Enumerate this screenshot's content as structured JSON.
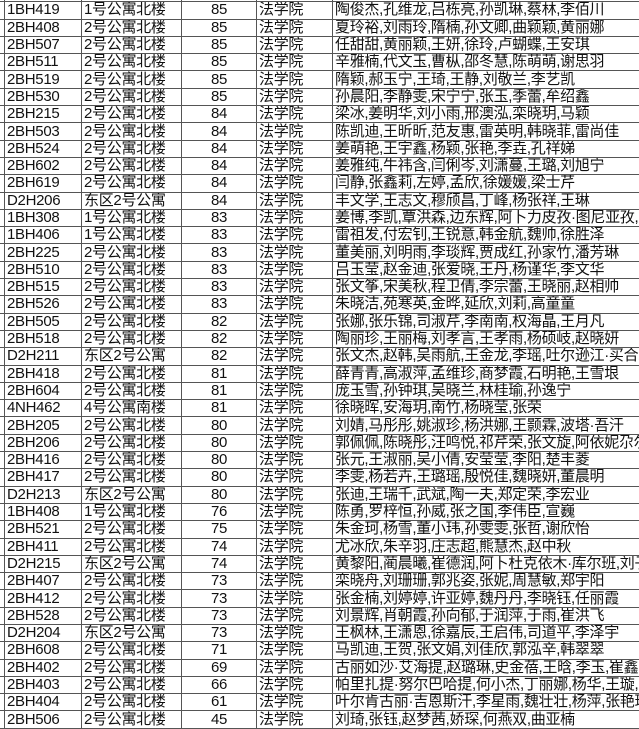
{
  "rows": [
    {
      "room": "1BH419",
      "building": "1号公寓北楼",
      "score": "85",
      "college": "法学院",
      "members": "陶俊杰,孔维龙,吕栋亮,孙凯琳,蔡林,李佰川"
    },
    {
      "room": "2BH408",
      "building": "2号公寓北楼",
      "score": "85",
      "college": "法学院",
      "members": "夏玲裕,刘雨玲,隋楠,孙文卿,曲颖颖,黄丽娜"
    },
    {
      "room": "2BH507",
      "building": "2号公寓北楼",
      "score": "85",
      "college": "法学院",
      "members": "任甜甜,黄丽颖,王妍,徐玲,卢蝴蝶,王安琪"
    },
    {
      "room": "2BH511",
      "building": "2号公寓北楼",
      "score": "85",
      "college": "法学院",
      "members": "辛雅楠,代文玉,曹枞,邵冬慧,陈萌萌,谢思羽"
    },
    {
      "room": "2BH519",
      "building": "2号公寓北楼",
      "score": "85",
      "college": "法学院",
      "members": "隋颖,郝玉宁,王琦,王静,刘敬兰,李艺凯"
    },
    {
      "room": "2BH530",
      "building": "2号公寓北楼",
      "score": "85",
      "college": "法学院",
      "members": "孙晨阳,李静雯,宋宁宁,张玉,季蕾,牟绍鑫"
    },
    {
      "room": "2BH215",
      "building": "2号公寓北楼",
      "score": "84",
      "college": "法学院",
      "members": "梁冰,姜明华,刘小雨,邢澳泓,栾晓玥,马颖"
    },
    {
      "room": "2BH503",
      "building": "2号公寓北楼",
      "score": "84",
      "college": "法学院",
      "members": "陈凯迪,王昕昕,范友惠,雷英明,韩晓菲,雷尚佳"
    },
    {
      "room": "2BH524",
      "building": "2号公寓北楼",
      "score": "84",
      "college": "法学院",
      "members": "姜萌艳,王宇鑫,杨颖,张艳,李垚,孔祥娣"
    },
    {
      "room": "2BH602",
      "building": "2号公寓北楼",
      "score": "84",
      "college": "法学院",
      "members": "姜雅纯,牛祎含,闫俐岑,刘潇蔓,王璐,刘旭宁"
    },
    {
      "room": "2BH619",
      "building": "2号公寓北楼",
      "score": "84",
      "college": "法学院",
      "members": "闫静,张鑫莉,左婷,孟欣,徐媛媛,梁士芹"
    },
    {
      "room": "D2H206",
      "building": "东区2号公寓",
      "score": "84",
      "college": "法学院",
      "members": "丰文学,王志文,穆颀昌,丁峰,杨张祥,王琳"
    },
    {
      "room": "1BH308",
      "building": "1号公寓北楼",
      "score": "83",
      "college": "法学院",
      "members": "姜博,李凯,覃洪森,边东辉,阿卜力皮孜·图尼亚孜,周"
    },
    {
      "room": "1BH406",
      "building": "1号公寓北楼",
      "score": "83",
      "college": "法学院",
      "members": "雷祖发,付宏钊,王锐意,韩金航,魏帅,徐胜泽"
    },
    {
      "room": "2BH225",
      "building": "2号公寓北楼",
      "score": "83",
      "college": "法学院",
      "members": "董美丽,刘明雨,李琰辉,贾成红,孙家竹,潘芳琳"
    },
    {
      "room": "2BH510",
      "building": "2号公寓北楼",
      "score": "83",
      "college": "法学院",
      "members": "吕玉莹,赵金迪,张爱晓,王丹,杨谨华,李文华"
    },
    {
      "room": "2BH515",
      "building": "2号公寓北楼",
      "score": "83",
      "college": "法学院",
      "members": "张文筝,宋美秋,程卫倩,李宗蕾,王晓丽,赵相帅"
    },
    {
      "room": "2BH526",
      "building": "2号公寓北楼",
      "score": "83",
      "college": "法学院",
      "members": "朱晓洁,苑寒英,金晔,延欣,刘莉,高童童"
    },
    {
      "room": "2BH505",
      "building": "2号公寓北楼",
      "score": "82",
      "college": "法学院",
      "members": "张娜,张乐锦,司淑芹,李南南,权海晶,王月凡"
    },
    {
      "room": "2BH518",
      "building": "2号公寓北楼",
      "score": "82",
      "college": "法学院",
      "members": "陶丽珍,王丽梅,刘孝言,王孝雨,杨硕岐,赵晓妍"
    },
    {
      "room": "D2H211",
      "building": "东区2号公寓",
      "score": "82",
      "college": "法学院",
      "members": "张文杰,赵韩,吴雨航,王金龙,李瑶,吐尔逊江·买合木"
    },
    {
      "room": "2BH418",
      "building": "2号公寓北楼",
      "score": "81",
      "college": "法学院",
      "members": "薛青青,高淑萍,孟维珍,商梦霞,石明艳,王雪垠"
    },
    {
      "room": "2BH604",
      "building": "2号公寓北楼",
      "score": "81",
      "college": "法学院",
      "members": "庞玉雪,孙钟琪,吴晓兰,林桂瑜,孙逸宁"
    },
    {
      "room": "4NH462",
      "building": "4号公寓南楼",
      "score": "81",
      "college": "法学院",
      "members": "徐晓晖,安海玥,南竹,杨晓莹,张荣"
    },
    {
      "room": "2BH205",
      "building": "2号公寓北楼",
      "score": "80",
      "college": "法学院",
      "members": "刘婧,马彤彤,姚淑珍,杨洪娜,王颢霖,波塔·吾汗"
    },
    {
      "room": "2BH206",
      "building": "2号公寓北楼",
      "score": "80",
      "college": "法学院",
      "members": "郭佩佩,陈晓彤,汪鸣悦,祁芹荣,张文旋,阿依妮尕尔·"
    },
    {
      "room": "2BH416",
      "building": "2号公寓北楼",
      "score": "80",
      "college": "法学院",
      "members": "张元,王淑丽,吴小倩,安莹莹,李阳,楚丰菱"
    },
    {
      "room": "2BH417",
      "building": "2号公寓北楼",
      "score": "80",
      "college": "法学院",
      "members": "李雯,杨若卉,王璐瑶,殷悦佳,魏晓妍,董晨明"
    },
    {
      "room": "D2H213",
      "building": "东区2号公寓",
      "score": "80",
      "college": "法学院",
      "members": "张迪,王瑞千,武斌,陶一夫,郑定荣,李宏业"
    },
    {
      "room": "1BH408",
      "building": "1号公寓北楼",
      "score": "76",
      "college": "法学院",
      "members": "陈勇,罗梓恒,孙威,张之国,李伟臣,宣巍"
    },
    {
      "room": "2BH521",
      "building": "2号公寓北楼",
      "score": "75",
      "college": "法学院",
      "members": "朱金珂,杨雪,董小玮,孙雯雯,张哲,谢欣怡"
    },
    {
      "room": "2BH411",
      "building": "2号公寓北楼",
      "score": "74",
      "college": "法学院",
      "members": "尤冰欣,朱辛羽,庄志超,熊慧杰,赵中秋"
    },
    {
      "room": "D2H215",
      "building": "东区2号公寓",
      "score": "74",
      "college": "法学院",
      "members": "黄黎阳,蔺晨曦,崔德润,阿卜杜克依木·库尔班,刘子"
    },
    {
      "room": "2BH407",
      "building": "2号公寓北楼",
      "score": "73",
      "college": "法学院",
      "members": "栾晓舟,刘珊珊,郭兆姿,张妮,周慧敏,郑宇阳"
    },
    {
      "room": "2BH412",
      "building": "2号公寓北楼",
      "score": "73",
      "college": "法学院",
      "members": "张金楠,刘婷婷,许亚婷,魏丹丹,李晓钰,任丽霞"
    },
    {
      "room": "2BH528",
      "building": "2号公寓北楼",
      "score": "73",
      "college": "法学院",
      "members": "刘景辉,肖朝霞,孙向郁,于润萍,于雨,崔洪飞"
    },
    {
      "room": "D2H204",
      "building": "东区2号公寓",
      "score": "73",
      "college": "法学院",
      "members": "王枫林,王潇恩,徐嘉辰,王启伟,司道平,李泽宇"
    },
    {
      "room": "2BH608",
      "building": "2号公寓北楼",
      "score": "71",
      "college": "法学院",
      "members": "马凯迪,王贺,张文娟,刘佳欣,郭泓辛,韩翠翠"
    },
    {
      "room": "2BH402",
      "building": "2号公寓北楼",
      "score": "69",
      "college": "法学院",
      "members": "古丽如沙·艾海提,赵璐琳,史金蓓,王晗,李玉,崔鑫伟"
    },
    {
      "room": "2BH403",
      "building": "2号公寓北楼",
      "score": "66",
      "college": "法学院",
      "members": "帕里扎提·努尔巴哈提,何小杰,丁丽娜,杨华,王璇,方"
    },
    {
      "room": "2BH404",
      "building": "2号公寓北楼",
      "score": "61",
      "college": "法学院",
      "members": "叶尔肯古丽·吉恩斯汗,李星雨,魏壮壮,杨萍,张艳珠,"
    },
    {
      "room": "2BH506",
      "building": "2号公寓北楼",
      "score": "45",
      "college": "法学院",
      "members": "刘琦,张钰,赵梦茜,娇琛,何燕双,曲亚楠"
    }
  ]
}
